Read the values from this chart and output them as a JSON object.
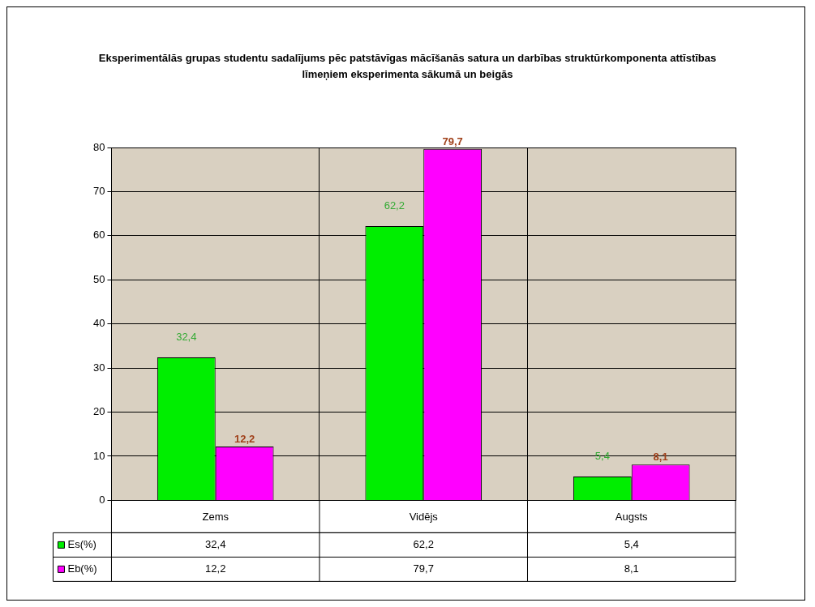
{
  "chart_data": {
    "type": "bar",
    "title": "Eksperimentālās grupas studentu sadalījums pēc patstāvīgas mācīšanās satura un darbības struktūrkomponenta attīstības līmeņiem eksperimenta sākumā un beigās",
    "categories": [
      "Zems",
      "Vidējs",
      "Augsts"
    ],
    "series": [
      {
        "name": "Es(%)",
        "color": "#00ee00",
        "values": [
          32.4,
          62.2,
          5.4
        ],
        "value_labels": [
          "32,4",
          "62,2",
          "5,4"
        ]
      },
      {
        "name": "Eb(%)",
        "color": "#ff00ff",
        "values": [
          12.2,
          79.7,
          8.1
        ],
        "value_labels": [
          "12,2",
          "79,7",
          "8,1"
        ]
      }
    ],
    "ylim": [
      0,
      80
    ],
    "yticks": [
      0,
      10,
      20,
      30,
      40,
      50,
      60,
      70,
      80
    ],
    "grid": true,
    "legend": "bottom left"
  }
}
